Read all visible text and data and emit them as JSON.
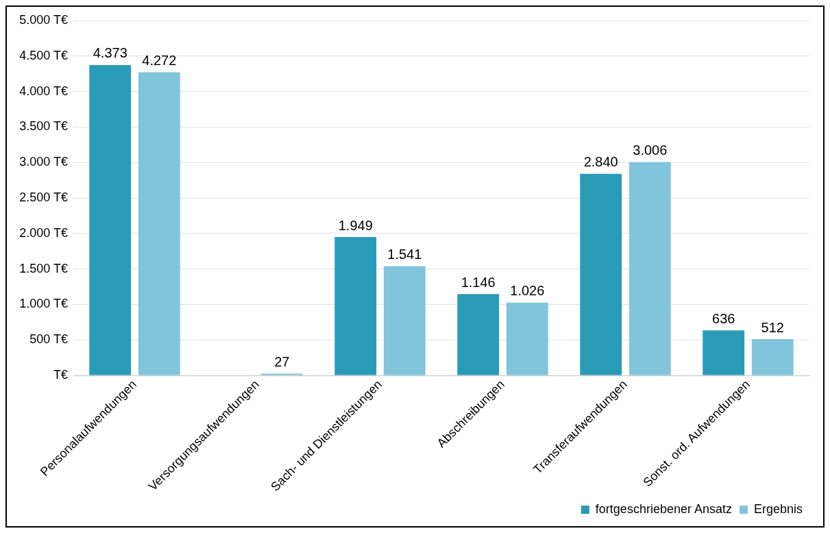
{
  "chart_data": {
    "type": "bar",
    "categories": [
      "Personalaufwendungen",
      "Versorgungsaufwendungen",
      "Sach- und Dienstleistungen",
      "Abschreibungen",
      "Transferaufwendungen",
      "Sonst. ord. Aufwendungen"
    ],
    "series": [
      {
        "name": "fortgeschriebener Ansatz",
        "color": "#2a9bb7",
        "values": [
          4373,
          null,
          1949,
          1146,
          2840,
          636
        ],
        "value_labels": [
          "4.373",
          null,
          "1.949",
          "1.146",
          "2.840",
          "636"
        ]
      },
      {
        "name": "Ergebnis",
        "color": "#82c4dc",
        "values": [
          4272,
          27,
          1541,
          1026,
          3006,
          512
        ],
        "value_labels": [
          "4.272",
          "27",
          "1.541",
          "1.026",
          "3.006",
          "512"
        ]
      }
    ],
    "ylim": [
      0,
      5000
    ],
    "yticks": [
      {
        "value": 0,
        "label": "T€"
      },
      {
        "value": 500,
        "label": "500 T€"
      },
      {
        "value": 1000,
        "label": "1.000 T€"
      },
      {
        "value": 1500,
        "label": "1.500 T€"
      },
      {
        "value": 2000,
        "label": "2.000 T€"
      },
      {
        "value": 2500,
        "label": "2.500 T€"
      },
      {
        "value": 3000,
        "label": "3.000 T€"
      },
      {
        "value": 3500,
        "label": "3.500 T€"
      },
      {
        "value": 4000,
        "label": "4.000 T€"
      },
      {
        "value": 4500,
        "label": "4.500 T€"
      },
      {
        "value": 5000,
        "label": "5.000 T€"
      }
    ],
    "grid": "y",
    "legend": "bottom right"
  }
}
